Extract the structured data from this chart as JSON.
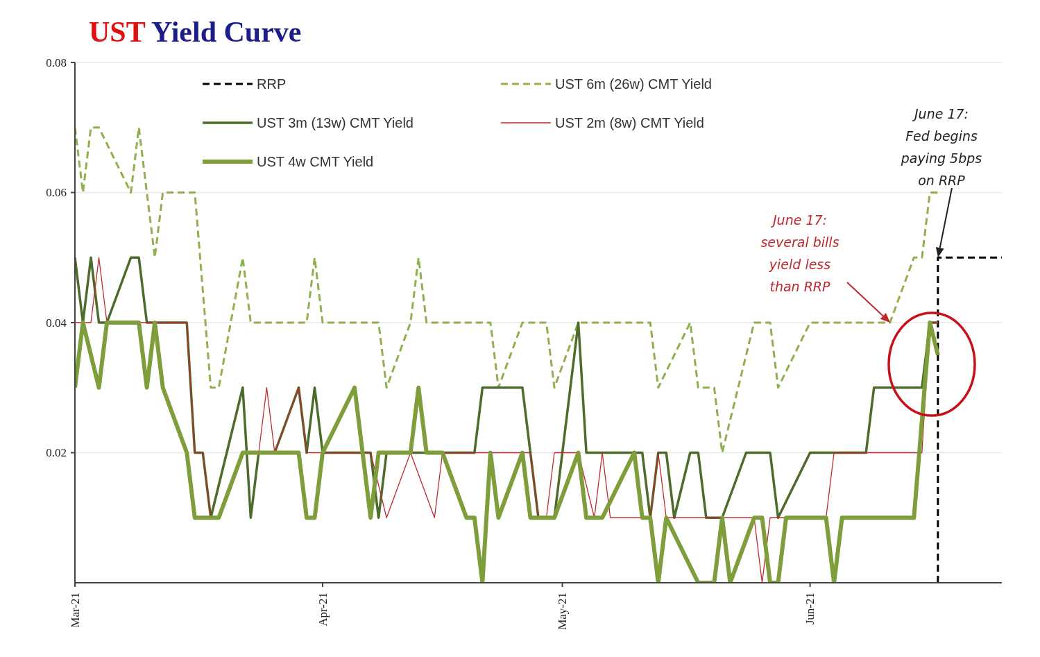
{
  "chart_data": {
    "type": "line",
    "title": "UST Yield Curve",
    "xlim": [
      "2021-03-01",
      "2021-06-25"
    ],
    "xticks": [
      {
        "value": "2021-03-01",
        "label": "Mar-21"
      },
      {
        "value": "2021-04-01",
        "label": "Apr-21"
      },
      {
        "value": "2021-05-01",
        "label": "May-21"
      },
      {
        "value": "2021-06-01",
        "label": "Jun-21"
      }
    ],
    "ylim": [
      0,
      0.08
    ],
    "yticks": [
      0.02,
      0.04,
      0.06,
      0.08
    ],
    "grid": "y",
    "legend": "top",
    "series": [
      {
        "name": "RRP",
        "color": "#000000",
        "line_style": "dashed",
        "x": [
          "2021-06-17",
          "2021-06-17",
          "2021-06-25"
        ],
        "values": [
          0,
          0.05,
          0.05
        ]
      },
      {
        "name": "UST 6m (26w) CMT Yield",
        "color": "#8fb04e",
        "line_style": "dashed",
        "x": [
          "2021-03-01",
          "2021-03-02",
          "2021-03-03",
          "2021-03-04",
          "2021-03-08",
          "2021-03-09",
          "2021-03-11",
          "2021-03-12",
          "2021-03-16",
          "2021-03-18",
          "2021-03-19",
          "2021-03-22",
          "2021-03-23",
          "2021-03-30",
          "2021-03-31",
          "2021-04-01",
          "2021-04-08",
          "2021-04-09",
          "2021-04-12",
          "2021-04-13",
          "2021-04-14",
          "2021-04-22",
          "2021-04-23",
          "2021-04-26",
          "2021-04-29",
          "2021-04-30",
          "2021-05-03",
          "2021-05-12",
          "2021-05-13",
          "2021-05-17",
          "2021-05-18",
          "2021-05-20",
          "2021-05-21",
          "2021-05-25",
          "2021-05-27",
          "2021-05-28",
          "2021-06-01",
          "2021-06-11",
          "2021-06-14",
          "2021-06-15",
          "2021-06-16",
          "2021-06-17"
        ],
        "values": [
          0.07,
          0.06,
          0.07,
          0.07,
          0.06,
          0.07,
          0.05,
          0.06,
          0.06,
          0.03,
          0.03,
          0.05,
          0.04,
          0.04,
          0.05,
          0.04,
          0.04,
          0.03,
          0.04,
          0.05,
          0.04,
          0.04,
          0.03,
          0.04,
          0.04,
          0.03,
          0.04,
          0.04,
          0.03,
          0.04,
          0.03,
          0.03,
          0.02,
          0.04,
          0.04,
          0.03,
          0.04,
          0.04,
          0.05,
          0.05,
          0.06,
          0.06
        ]
      },
      {
        "name": "UST 3m (13w) CMT Yield",
        "color": "#4d6b2a",
        "line_style": "solid",
        "x": [
          "2021-03-01",
          "2021-03-02",
          "2021-03-03",
          "2021-03-04",
          "2021-03-05",
          "2021-03-08",
          "2021-03-09",
          "2021-03-10",
          "2021-03-15",
          "2021-03-16",
          "2021-03-17",
          "2021-03-18",
          "2021-03-22",
          "2021-03-23",
          "2021-03-24",
          "2021-03-26",
          "2021-03-29",
          "2021-03-30",
          "2021-03-31",
          "2021-04-01",
          "2021-04-07",
          "2021-04-08",
          "2021-04-09",
          "2021-04-20",
          "2021-04-21",
          "2021-04-26",
          "2021-04-27",
          "2021-04-28",
          "2021-04-30",
          "2021-05-03",
          "2021-05-04",
          "2021-05-11",
          "2021-05-12",
          "2021-05-13",
          "2021-05-14",
          "2021-05-15",
          "2021-05-17",
          "2021-05-18",
          "2021-05-19",
          "2021-05-21",
          "2021-05-24",
          "2021-05-27",
          "2021-05-28",
          "2021-06-01",
          "2021-06-08",
          "2021-06-09",
          "2021-06-15",
          "2021-06-16",
          "2021-06-17"
        ],
        "values": [
          0.05,
          0.04,
          0.05,
          0.04,
          0.04,
          0.05,
          0.05,
          0.04,
          0.04,
          0.02,
          0.02,
          0.01,
          0.03,
          0.01,
          0.02,
          0.02,
          0.03,
          0.02,
          0.03,
          0.02,
          0.02,
          0.01,
          0.02,
          0.02,
          0.03,
          0.03,
          0.02,
          0.01,
          0.01,
          0.04,
          0.02,
          0.02,
          0.01,
          0.02,
          0.02,
          0.01,
          0.02,
          0.02,
          0.01,
          0.01,
          0.02,
          0.02,
          0.01,
          0.02,
          0.02,
          0.03,
          0.03,
          0.04,
          0.04
        ]
      },
      {
        "name": "UST 2m (8w) CMT Yield",
        "color": "#c0282d",
        "line_style": "solid",
        "x": [
          "2021-03-01",
          "2021-03-03",
          "2021-03-04",
          "2021-03-05",
          "2021-03-15",
          "2021-03-16",
          "2021-03-17",
          "2021-03-18",
          "2021-03-22",
          "2021-03-24",
          "2021-03-25",
          "2021-03-26",
          "2021-03-29",
          "2021-03-30",
          "2021-04-07",
          "2021-04-09",
          "2021-04-12",
          "2021-04-15",
          "2021-04-16",
          "2021-04-27",
          "2021-04-28",
          "2021-04-29",
          "2021-04-30",
          "2021-05-03",
          "2021-05-05",
          "2021-05-06",
          "2021-05-07",
          "2021-05-12",
          "2021-05-13",
          "2021-05-14",
          "2021-05-25",
          "2021-05-26",
          "2021-05-27",
          "2021-06-03",
          "2021-06-04",
          "2021-06-15",
          "2021-06-16",
          "2021-06-17"
        ],
        "values": [
          0.04,
          0.04,
          0.05,
          0.04,
          0.04,
          0.02,
          0.02,
          0.01,
          null,
          0.02,
          0.03,
          0.02,
          0.03,
          0.02,
          0.02,
          0.01,
          0.02,
          0.01,
          0.02,
          0.02,
          0.01,
          0.01,
          0.02,
          0.02,
          0.01,
          0.02,
          0.01,
          0.01,
          0.02,
          0.01,
          0.01,
          0,
          0.01,
          0.01,
          0.02,
          0.02,
          0.04,
          0.04
        ]
      },
      {
        "name": "UST 4w CMT Yield",
        "color": "#7e9e3c",
        "line_style": "solid",
        "x": [
          "2021-03-01",
          "2021-03-02",
          "2021-03-04",
          "2021-03-05",
          "2021-03-09",
          "2021-03-10",
          "2021-03-11",
          "2021-03-12",
          "2021-03-15",
          "2021-03-16",
          "2021-03-19",
          "2021-03-22",
          "2021-03-29",
          "2021-03-30",
          "2021-03-31",
          "2021-04-01",
          "2021-04-05",
          "2021-04-06",
          "2021-04-07",
          "2021-04-08",
          "2021-04-12",
          "2021-04-13",
          "2021-04-14",
          "2021-04-16",
          "2021-04-19",
          "2021-04-20",
          "2021-04-21",
          "2021-04-22",
          "2021-04-23",
          "2021-04-26",
          "2021-04-27",
          "2021-04-30",
          "2021-05-03",
          "2021-05-04",
          "2021-05-06",
          "2021-05-10",
          "2021-05-11",
          "2021-05-12",
          "2021-05-13",
          "2021-05-14",
          "2021-05-18",
          "2021-05-20",
          "2021-05-21",
          "2021-05-22",
          "2021-05-25",
          "2021-05-26",
          "2021-05-27",
          "2021-05-28",
          "2021-05-29",
          "2021-06-03",
          "2021-06-04",
          "2021-06-05",
          "2021-06-14",
          "2021-06-16",
          "2021-06-17"
        ],
        "values": [
          0.03,
          0.04,
          0.03,
          0.04,
          0.04,
          0.03,
          0.04,
          0.03,
          0.02,
          0.01,
          0.01,
          0.02,
          0.02,
          0.01,
          0.01,
          0.02,
          0.03,
          0.02,
          0.01,
          0.02,
          0.02,
          0.03,
          0.02,
          0.02,
          0.01,
          0.01,
          0,
          0.02,
          0.01,
          0.02,
          0.01,
          0.01,
          0.02,
          0.01,
          0.01,
          0.02,
          0.01,
          0.01,
          0,
          0.01,
          0,
          0,
          0.01,
          0,
          0.01,
          0.01,
          0,
          0,
          0.01,
          0.01,
          0,
          0.01,
          0.01,
          0.04,
          0.035
        ]
      }
    ],
    "annotations": [
      "June 17:\nseveral bills\nyield less\nthan RRP",
      "June 17:\nFed begins\npaying 5bps\non RRP"
    ]
  }
}
